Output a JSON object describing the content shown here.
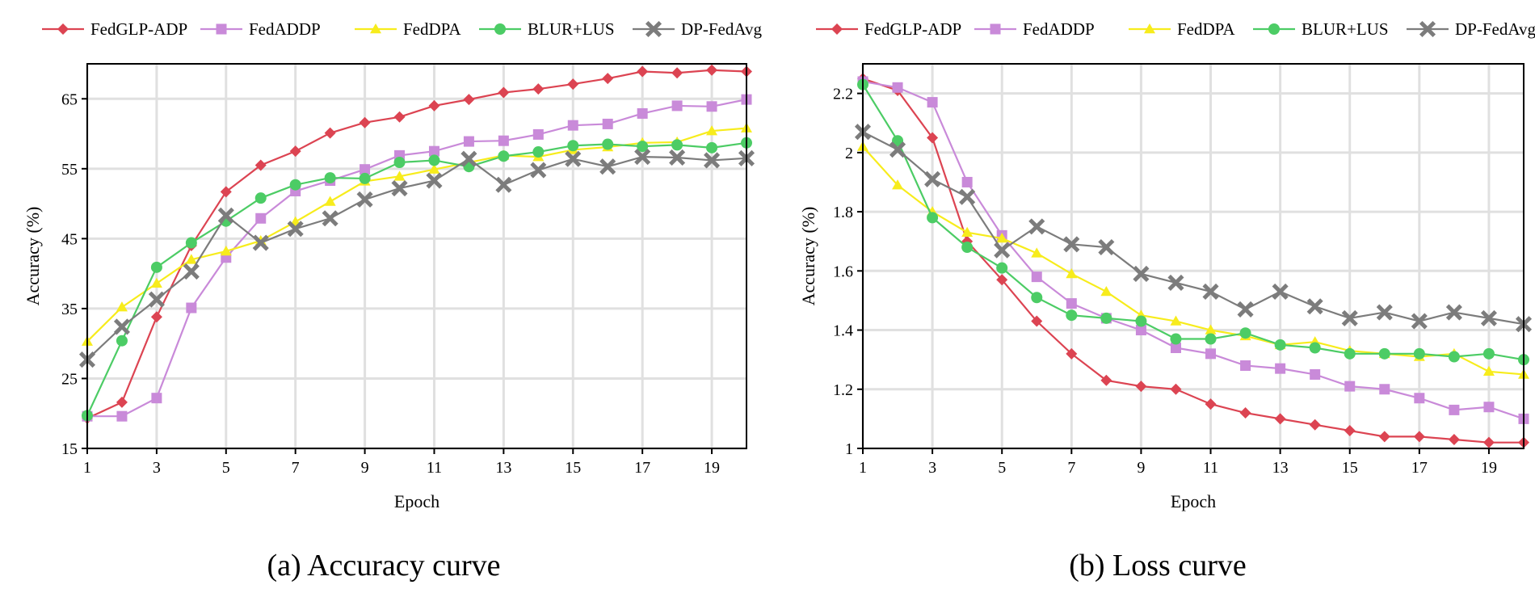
{
  "colors": {
    "FedGLP-ADP": "#dc4452",
    "FedADDP": "#c98ad9",
    "FedDPA": "#f7ec1c",
    "BLUR+LUS": "#4ccc65",
    "DP-FedAvg": "#7c7c7c"
  },
  "legend": [
    "FedGLP-ADP",
    "FedADDP",
    "FedDPA",
    "BLUR+LUS",
    "DP-FedAvg"
  ],
  "chart_data": [
    {
      "type": "line",
      "caption": "(a) Accuracy curve",
      "xlabel": "Epoch",
      "ylabel": "Accuracy (%)",
      "x": [
        1,
        2,
        3,
        4,
        5,
        6,
        7,
        8,
        9,
        10,
        11,
        12,
        13,
        14,
        15,
        16,
        17,
        18,
        19,
        20
      ],
      "xticks": [
        1,
        3,
        5,
        7,
        9,
        11,
        13,
        15,
        17,
        19
      ],
      "yticks": [
        15,
        25,
        35,
        45,
        55,
        65
      ],
      "yticklabels": [
        "15",
        "25",
        "35",
        "45",
        "55",
        "65"
      ],
      "xlim": [
        1,
        20
      ],
      "ylim": [
        15,
        70
      ],
      "grid": true,
      "legend_position": "top",
      "series": [
        {
          "name": "FedGLP-ADP",
          "marker": "diamond",
          "values": [
            19.3,
            21.6,
            33.8,
            44.0,
            51.7,
            55.5,
            57.5,
            60.1,
            61.6,
            62.4,
            64.0,
            64.9,
            65.9,
            66.4,
            67.1,
            67.9,
            68.9,
            68.7,
            69.1,
            68.9
          ]
        },
        {
          "name": "FedADDP",
          "marker": "square",
          "values": [
            19.6,
            19.6,
            22.2,
            35.1,
            42.3,
            47.9,
            51.8,
            53.3,
            54.9,
            56.9,
            57.5,
            58.9,
            59.0,
            59.9,
            61.2,
            61.4,
            62.9,
            64.0,
            63.9,
            64.9
          ]
        },
        {
          "name": "FedDPA",
          "marker": "triangle",
          "values": [
            30.3,
            35.2,
            38.6,
            42.0,
            43.2,
            44.7,
            47.4,
            50.3,
            53.2,
            53.9,
            54.9,
            55.9,
            56.9,
            56.7,
            57.7,
            58.1,
            58.7,
            58.8,
            60.4,
            60.8
          ]
        },
        {
          "name": "BLUR+LUS",
          "marker": "circle",
          "values": [
            19.7,
            30.4,
            40.9,
            44.4,
            47.5,
            50.8,
            52.7,
            53.7,
            53.6,
            55.9,
            56.2,
            55.3,
            56.8,
            57.4,
            58.3,
            58.5,
            58.2,
            58.4,
            58.0,
            58.7
          ]
        },
        {
          "name": "DP-FedAvg",
          "marker": "x",
          "values": [
            27.7,
            32.4,
            36.3,
            40.3,
            48.3,
            44.4,
            46.4,
            47.9,
            50.6,
            52.2,
            53.3,
            56.4,
            52.7,
            54.8,
            56.4,
            55.3,
            56.7,
            56.6,
            56.2,
            56.5
          ]
        }
      ]
    },
    {
      "type": "line",
      "caption": "(b) Loss curve",
      "xlabel": "Epoch",
      "ylabel": "Accuracy (%)",
      "x": [
        1,
        2,
        3,
        4,
        5,
        6,
        7,
        8,
        9,
        10,
        11,
        12,
        13,
        14,
        15,
        16,
        17,
        18,
        19,
        20
      ],
      "xticks": [
        1,
        3,
        5,
        7,
        9,
        11,
        13,
        15,
        17,
        19
      ],
      "yticks": [
        1,
        1.2,
        1.4,
        1.6,
        1.8,
        2,
        2.2
      ],
      "yticklabels": [
        "1",
        "1.2",
        "1.4",
        "1.6",
        "1.8",
        "2",
        "2.2"
      ],
      "xlim": [
        1,
        20
      ],
      "ylim": [
        1,
        2.3
      ],
      "grid": true,
      "legend_position": "top",
      "series": [
        {
          "name": "FedGLP-ADP",
          "marker": "diamond",
          "values": [
            2.25,
            2.21,
            2.05,
            1.7,
            1.57,
            1.43,
            1.32,
            1.23,
            1.21,
            1.2,
            1.15,
            1.12,
            1.1,
            1.08,
            1.06,
            1.04,
            1.04,
            1.03,
            1.02,
            1.02
          ]
        },
        {
          "name": "FedADDP",
          "marker": "square",
          "values": [
            2.24,
            2.22,
            2.17,
            1.9,
            1.72,
            1.58,
            1.49,
            1.44,
            1.4,
            1.34,
            1.32,
            1.28,
            1.27,
            1.25,
            1.21,
            1.2,
            1.17,
            1.13,
            1.14,
            1.1
          ]
        },
        {
          "name": "FedDPA",
          "marker": "triangle",
          "values": [
            2.02,
            1.89,
            1.8,
            1.73,
            1.71,
            1.66,
            1.59,
            1.53,
            1.45,
            1.43,
            1.4,
            1.38,
            1.35,
            1.36,
            1.33,
            1.32,
            1.31,
            1.32,
            1.26,
            1.25
          ]
        },
        {
          "name": "BLUR+LUS",
          "marker": "circle",
          "values": [
            2.23,
            2.04,
            1.78,
            1.68,
            1.61,
            1.51,
            1.45,
            1.44,
            1.43,
            1.37,
            1.37,
            1.39,
            1.35,
            1.34,
            1.32,
            1.32,
            1.32,
            1.31,
            1.32,
            1.3
          ]
        },
        {
          "name": "DP-FedAvg",
          "marker": "x",
          "values": [
            2.07,
            2.01,
            1.91,
            1.85,
            1.67,
            1.75,
            1.69,
            1.68,
            1.59,
            1.56,
            1.53,
            1.47,
            1.53,
            1.48,
            1.44,
            1.46,
            1.43,
            1.46,
            1.44,
            1.42
          ]
        }
      ]
    }
  ]
}
